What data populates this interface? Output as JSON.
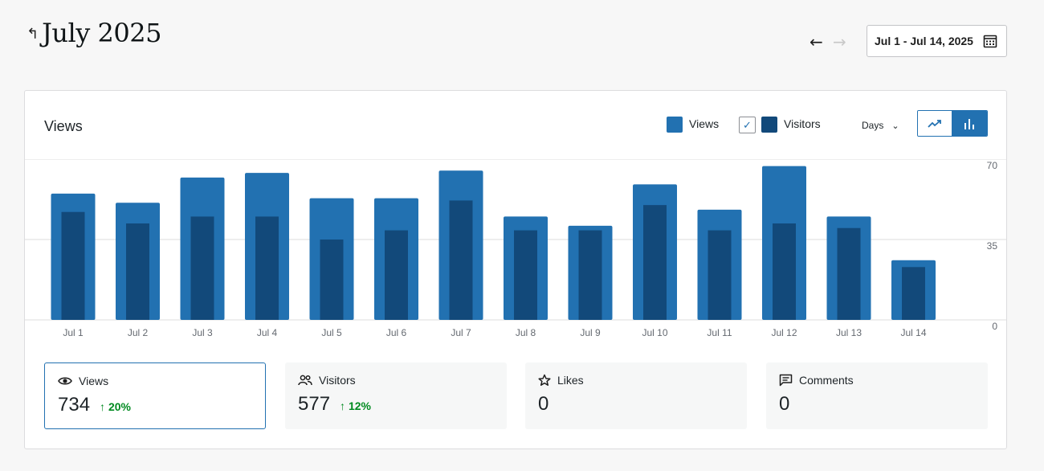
{
  "header": {
    "title": "July 2025",
    "back_icon": "arrow-up-left-icon",
    "prev_icon": "arrow-left-icon",
    "next_icon": "arrow-right-icon",
    "date_range": "Jul 1 - Jul 14, 2025",
    "calendar_icon": "calendar-icon"
  },
  "panel": {
    "title": "Views",
    "legend": {
      "views_label": "Views",
      "visitors_label": "Visitors",
      "visitors_checked": true
    },
    "period_label": "Days",
    "colors": {
      "views": "#2271b1",
      "visitors": "#12497a",
      "accent": "#2271b1",
      "positive": "#008a20"
    }
  },
  "chart_data": {
    "type": "bar",
    "categories": [
      "Jul 1",
      "Jul 2",
      "Jul 3",
      "Jul 4",
      "Jul 5",
      "Jul 6",
      "Jul 7",
      "Jul 8",
      "Jul 9",
      "Jul 10",
      "Jul 11",
      "Jul 12",
      "Jul 13",
      "Jul 14"
    ],
    "series": [
      {
        "name": "Views",
        "values": [
          55,
          51,
          62,
          64,
          53,
          53,
          65,
          45,
          41,
          59,
          48,
          67,
          45,
          26
        ]
      },
      {
        "name": "Visitors",
        "values": [
          47,
          42,
          45,
          45,
          35,
          39,
          52,
          39,
          39,
          50,
          39,
          42,
          40,
          23
        ]
      }
    ],
    "yticks": [
      "70",
      "35",
      "0"
    ],
    "ylim": [
      0,
      70
    ],
    "grid": true
  },
  "stats": [
    {
      "icon": "eye-icon",
      "label": "Views",
      "value": "734",
      "change": "20%"
    },
    {
      "icon": "people-icon",
      "label": "Visitors",
      "value": "577",
      "change": "12%"
    },
    {
      "icon": "star-icon",
      "label": "Likes",
      "value": "0",
      "change": ""
    },
    {
      "icon": "comment-icon",
      "label": "Comments",
      "value": "0",
      "change": ""
    }
  ]
}
